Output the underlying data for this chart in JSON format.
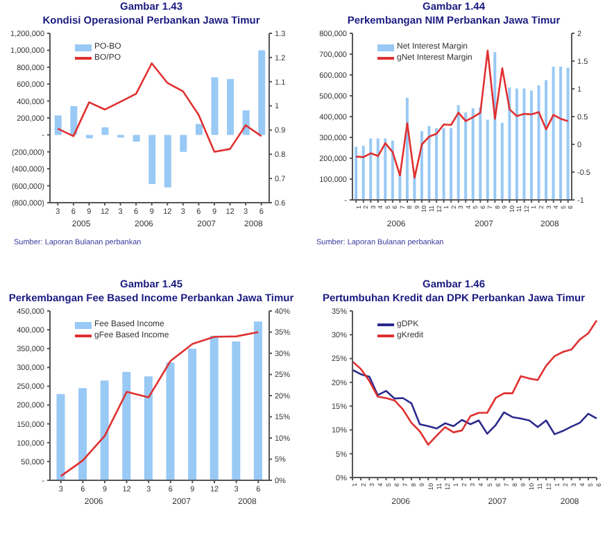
{
  "chart_data": [
    {
      "type": "bar",
      "title": "Gambar 1.43",
      "subtitle": "Kondisi Operasional Perbankan Jawa Timur",
      "categories": [
        "3",
        "6",
        "9",
        "12",
        "3",
        "6",
        "9",
        "12",
        "3",
        "6",
        "9",
        "12",
        "3",
        "6"
      ],
      "series": [
        {
          "name": "PO-BO",
          "color": "#99c9f5",
          "values": [
            230000,
            340000,
            -40000,
            90000,
            -30000,
            -80000,
            -580000,
            -620000,
            -200000,
            130000,
            680000,
            660000,
            290000,
            1000000
          ]
        },
        {
          "name": "BO/PO",
          "type": "line",
          "axis": "y2",
          "color": "#e03030",
          "values": [
            0.906,
            0.875,
            1.015,
            0.985,
            1.017,
            1.05,
            1.176,
            1.095,
            1.06,
            0.962,
            0.81,
            0.822,
            0.92,
            0.875
          ]
        }
      ],
      "ylim": [
        -800000,
        1200000
      ],
      "yticks": [
        {
          "value": -800000,
          "label": "(800,000)"
        },
        {
          "value": -600000,
          "label": "(600,000)"
        },
        {
          "value": -400000,
          "label": "(400,000)"
        },
        {
          "value": -200000,
          "label": "(200,000)"
        },
        {
          "value": 0,
          "label": "-"
        },
        {
          "value": 200000,
          "label": "200,000"
        },
        {
          "value": 400000,
          "label": "400,000"
        },
        {
          "value": 600000,
          "label": "600,000"
        },
        {
          "value": 800000,
          "label": "800,000"
        },
        {
          "value": 1000000,
          "label": "1,000,000"
        },
        {
          "value": 1200000,
          "label": "1,200,000"
        }
      ],
      "y2lim": [
        0.6,
        1.3
      ],
      "y2ticks": [
        0.6,
        0.7,
        0.8,
        0.9,
        1,
        1.1,
        1.2,
        1.3
      ],
      "legend": "top left",
      "annotations": [
        "2005",
        "2006",
        "2007",
        "2008",
        "Sumber: Laporan Bulanan perbankan"
      ]
    },
    {
      "type": "bar",
      "title": "Gambar 1.44",
      "subtitle": "Perkembangan NIM Perbankan Jawa Timur",
      "categories": [
        "1",
        "2",
        "3",
        "4",
        "5",
        "6",
        "7",
        "8",
        "9",
        "10",
        "11",
        "12",
        "1",
        "2",
        "3",
        "4",
        "5",
        "6",
        "7",
        "8",
        "9",
        "10",
        "11",
        "12",
        "1",
        "2",
        "3",
        "4",
        "5",
        "6"
      ],
      "series": [
        {
          "name": "Net Interest Margin",
          "color": "#99c9f5",
          "values": [
            255000,
            260000,
            295000,
            295000,
            295000,
            285000,
            130000,
            490000,
            120000,
            330000,
            355000,
            345000,
            345000,
            345000,
            455000,
            420000,
            440000,
            445000,
            385000,
            710000,
            370000,
            540000,
            535000,
            535000,
            525000,
            550000,
            575000,
            640000,
            640000,
            635000
          ]
        },
        {
          "name": "gNet Interest Margin",
          "type": "line",
          "axis": "y2",
          "color": "#e03030",
          "values": [
            -0.22,
            -0.23,
            -0.16,
            -0.21,
            0.02,
            -0.14,
            -0.56,
            0.38,
            -0.6,
            0,
            0.14,
            0.19,
            0.36,
            0.35,
            0.57,
            0.42,
            0.49,
            0.57,
            1.69,
            0.46,
            1.37,
            0.63,
            0.51,
            0.55,
            0.54,
            0.58,
            0.27,
            0.53,
            0.46,
            0.42
          ]
        }
      ],
      "ylim": [
        0,
        800000
      ],
      "yticks": [
        {
          "value": 0,
          "label": "-"
        },
        {
          "value": 100000,
          "label": "100,000"
        },
        {
          "value": 200000,
          "label": "200,000"
        },
        {
          "value": 300000,
          "label": "300,000"
        },
        {
          "value": 400000,
          "label": "400,000"
        },
        {
          "value": 500000,
          "label": "500,000"
        },
        {
          "value": 600000,
          "label": "600,000"
        },
        {
          "value": 700000,
          "label": "700,000"
        },
        {
          "value": 800000,
          "label": "800,000"
        }
      ],
      "y2lim": [
        -1,
        2
      ],
      "y2ticks": [
        -1,
        -0.5,
        0,
        0.5,
        1,
        1.5,
        2
      ],
      "legend": "top left",
      "annotations": [
        "2006",
        "2007",
        "2008",
        "Sumber: Laporan Bulanan perbankan"
      ]
    },
    {
      "type": "bar",
      "title": "Gambar 1.45",
      "subtitle": "Perkembangan Fee Based Income Perbankan Jawa Timur",
      "categories": [
        "3",
        "6",
        "9",
        "12",
        "3",
        "6",
        "9",
        "12",
        "3",
        "6"
      ],
      "series": [
        {
          "name": "Fee Based Income",
          "color": "#99c9f5",
          "values": [
            229000,
            245000,
            265000,
            288000,
            276000,
            313000,
            350000,
            384000,
            369000,
            422000
          ]
        },
        {
          "name": "gFee Based Income",
          "type": "line",
          "axis": "y2",
          "color": "#e03030",
          "values": [
            1,
            4.7,
            10.5,
            20.9,
            19.6,
            28.2,
            32.2,
            33.9,
            34,
            35
          ]
        }
      ],
      "ylim": [
        0,
        450000
      ],
      "yticks": [
        {
          "value": 0,
          "label": "-"
        },
        {
          "value": 50000,
          "label": "50,000"
        },
        {
          "value": 100000,
          "label": "100,000"
        },
        {
          "value": 150000,
          "label": "150,000"
        },
        {
          "value": 200000,
          "label": "200,000"
        },
        {
          "value": 250000,
          "label": "250,000"
        },
        {
          "value": 300000,
          "label": "300,000"
        },
        {
          "value": 350000,
          "label": "350,000"
        },
        {
          "value": 400000,
          "label": "400,000"
        },
        {
          "value": 450000,
          "label": "450,000"
        }
      ],
      "y2lim": [
        0,
        40
      ],
      "y2ticks": [
        {
          "value": 0,
          "label": "0%"
        },
        {
          "value": 5,
          "label": "5%"
        },
        {
          "value": 10,
          "label": "10%"
        },
        {
          "value": 15,
          "label": "15%"
        },
        {
          "value": 20,
          "label": "20%"
        },
        {
          "value": 25,
          "label": "25%"
        },
        {
          "value": 30,
          "label": "30%"
        },
        {
          "value": 35,
          "label": "35%"
        },
        {
          "value": 40,
          "label": "40%"
        }
      ],
      "legend": "top left",
      "annotations": [
        "2006",
        "2007",
        "2008"
      ]
    },
    {
      "type": "line",
      "title": "Gambar 1.46",
      "subtitle": "Pertumbuhan Kredit dan DPK Perbankan Jawa Timur",
      "categories": [
        "1",
        "2",
        "3",
        "4",
        "5",
        "6",
        "7",
        "8",
        "9",
        "10",
        "11",
        "12",
        "1",
        "2",
        "3",
        "4",
        "5",
        "6",
        "7",
        "8",
        "9",
        "10",
        "11",
        "12",
        "1",
        "2",
        "3",
        "4",
        "5",
        "6"
      ],
      "series": [
        {
          "name": "gDPK",
          "color": "#2a2a8c",
          "values": [
            22.6,
            21.7,
            21.2,
            17.3,
            18.2,
            16.6,
            16.7,
            15.6,
            11.2,
            10.8,
            10.3,
            11.4,
            10.8,
            12.1,
            11.2,
            12,
            9.2,
            11,
            13.7,
            12.7,
            12.4,
            12,
            10.6,
            12,
            9.1,
            9.8,
            10.7,
            11.5,
            13.4,
            12.4
          ]
        },
        {
          "name": "gKredit",
          "color": "#e03030",
          "values": [
            24.4,
            22.8,
            20.3,
            17,
            16.7,
            16.2,
            14.3,
            11.5,
            9.7,
            6.9,
            8.8,
            10.6,
            9.5,
            9.9,
            12.9,
            13.6,
            13.6,
            16.7,
            17.7,
            17.7,
            21.3,
            20.8,
            20.5,
            23.5,
            25.5,
            26.4,
            26.9,
            29,
            30.3,
            33
          ]
        }
      ],
      "ylim": [
        0,
        35
      ],
      "yticks": [
        {
          "value": 0,
          "label": "0%"
        },
        {
          "value": 5,
          "label": "5%"
        },
        {
          "value": 10,
          "label": "10%"
        },
        {
          "value": 15,
          "label": "15%"
        },
        {
          "value": 20,
          "label": "20%"
        },
        {
          "value": 25,
          "label": "25%"
        },
        {
          "value": 30,
          "label": "30%"
        },
        {
          "value": 35,
          "label": "35%"
        }
      ],
      "legend": "top left",
      "annotations": [
        "2006",
        "2007",
        "2008"
      ]
    }
  ]
}
